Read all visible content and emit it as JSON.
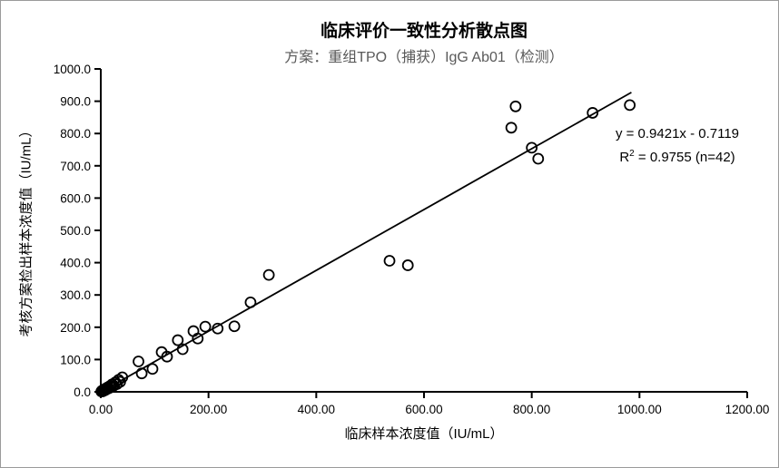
{
  "title": "临床评价一致性分析散点图",
  "subtitle": "方案：重组TPO（捕获）IgG Ab01（检测）",
  "equation": {
    "line1": "y = 0.9421x - 0.7119",
    "r2_prefix": "R",
    "r2_sup": "2",
    "r2_rest": " = 0.9755 (n=42)"
  },
  "axes": {
    "x_title": "临床样本浓度值（IU/mL）",
    "y_title": "考核方案检出样本浓度值（IU/mL）"
  },
  "chart_data": {
    "type": "scatter",
    "title": "临床评价一致性分析散点图",
    "subtitle": "方案：重组TPO（捕获）IgG Ab01（检测）",
    "xlabel": "临床样本浓度值（IU/mL）",
    "ylabel": "考核方案检出样本浓度值（IU/mL）",
    "xlim": [
      0,
      1200
    ],
    "ylim": [
      0,
      1000
    ],
    "x_ticks": [
      0,
      200,
      400,
      600,
      800,
      1000,
      1200
    ],
    "x_tick_labels": [
      "0.00",
      "200.00",
      "400.00",
      "600.00",
      "800.00",
      "1000.00",
      "1200.00"
    ],
    "y_ticks": [
      0,
      100,
      200,
      300,
      400,
      500,
      600,
      700,
      800,
      900,
      1000
    ],
    "y_tick_labels": [
      "0.0",
      "100.0",
      "200.0",
      "300.0",
      "400.0",
      "500.0",
      "600.0",
      "700.0",
      "800.0",
      "900.0",
      "1000.0"
    ],
    "grid": false,
    "marker": {
      "shape": "circle-open",
      "color": "#000000",
      "radius_px": 5.5,
      "stroke_px": 1.8
    },
    "colors": {
      "axis": "#000000",
      "text": "#000000",
      "subtitle": "#595959",
      "background": "#ffffff"
    },
    "points": [
      [
        1,
        1
      ],
      [
        2,
        3
      ],
      [
        3,
        1
      ],
      [
        4,
        5
      ],
      [
        5,
        3
      ],
      [
        6,
        7
      ],
      [
        8,
        5
      ],
      [
        9,
        10
      ],
      [
        11,
        8
      ],
      [
        13,
        14
      ],
      [
        15,
        11
      ],
      [
        17,
        18
      ],
      [
        19,
        15
      ],
      [
        21,
        23
      ],
      [
        24,
        19
      ],
      [
        27,
        29
      ],
      [
        30,
        24
      ],
      [
        33,
        37
      ],
      [
        36,
        31
      ],
      [
        40,
        45
      ],
      [
        70,
        94
      ],
      [
        76,
        57
      ],
      [
        96,
        71
      ],
      [
        113,
        123
      ],
      [
        123,
        109
      ],
      [
        143,
        160
      ],
      [
        152,
        132
      ],
      [
        172,
        188
      ],
      [
        180,
        165
      ],
      [
        194,
        202
      ],
      [
        217,
        196
      ],
      [
        248,
        203
      ],
      [
        278,
        277
      ],
      [
        312,
        362
      ],
      [
        536,
        406
      ],
      [
        570,
        392
      ],
      [
        762,
        818
      ],
      [
        770,
        884
      ],
      [
        800,
        756
      ],
      [
        812,
        722
      ],
      [
        913,
        864
      ],
      [
        982,
        888
      ]
    ],
    "trendline": {
      "slope": 0.9421,
      "intercept": -0.7119,
      "x_start": 2,
      "x_end": 985,
      "equation": "y = 0.9421x - 0.7119",
      "r_squared": 0.9755,
      "n": 42
    }
  }
}
